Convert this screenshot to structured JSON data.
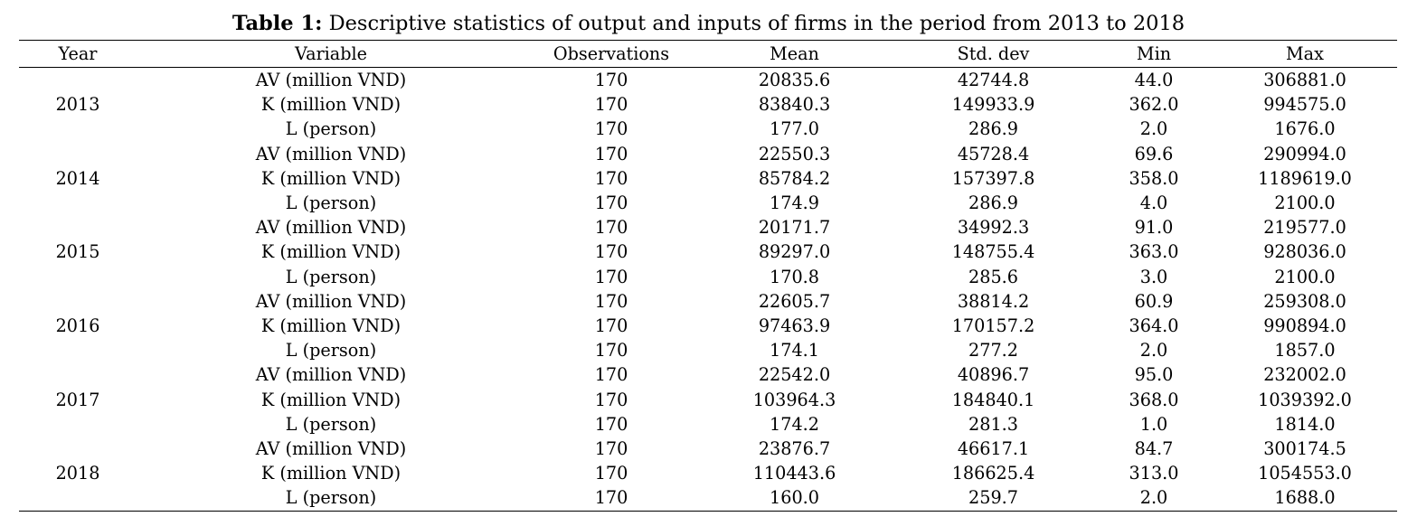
{
  "caption": {
    "label": "Table 1:",
    "text": "Descriptive statistics of output and inputs of firms in the period from 2013 to 2018"
  },
  "table": {
    "headers": [
      "Year",
      "Variable",
      "Observations",
      "Mean",
      "Std. dev",
      "Min",
      "Max"
    ],
    "groups": [
      {
        "year": "2013",
        "rows": [
          {
            "variable": "AV (million VND)",
            "observations": "170",
            "mean": "20835.6",
            "std": "42744.8",
            "min": "44.0",
            "max": "306881.0"
          },
          {
            "variable": "K (million VND)",
            "observations": "170",
            "mean": "83840.3",
            "std": "149933.9",
            "min": "362.0",
            "max": "994575.0"
          },
          {
            "variable": "L (person)",
            "observations": "170",
            "mean": "177.0",
            "std": "286.9",
            "min": "2.0",
            "max": "1676.0"
          }
        ]
      },
      {
        "year": "2014",
        "rows": [
          {
            "variable": "AV (million VND)",
            "observations": "170",
            "mean": "22550.3",
            "std": "45728.4",
            "min": "69.6",
            "max": "290994.0"
          },
          {
            "variable": "K (million VND)",
            "observations": "170",
            "mean": "85784.2",
            "std": "157397.8",
            "min": "358.0",
            "max": "1189619.0"
          },
          {
            "variable": "L (person)",
            "observations": "170",
            "mean": "174.9",
            "std": "286.9",
            "min": "4.0",
            "max": "2100.0"
          }
        ]
      },
      {
        "year": "2015",
        "rows": [
          {
            "variable": "AV (million VND)",
            "observations": "170",
            "mean": "20171.7",
            "std": "34992.3",
            "min": "91.0",
            "max": "219577.0"
          },
          {
            "variable": "K (million VND)",
            "observations": "170",
            "mean": "89297.0",
            "std": "148755.4",
            "min": "363.0",
            "max": "928036.0"
          },
          {
            "variable": "L (person)",
            "observations": "170",
            "mean": "170.8",
            "std": "285.6",
            "min": "3.0",
            "max": "2100.0"
          }
        ]
      },
      {
        "year": "2016",
        "rows": [
          {
            "variable": "AV (million VND)",
            "observations": "170",
            "mean": "22605.7",
            "std": "38814.2",
            "min": "60.9",
            "max": "259308.0"
          },
          {
            "variable": "K (million VND)",
            "observations": "170",
            "mean": "97463.9",
            "std": "170157.2",
            "min": "364.0",
            "max": "990894.0"
          },
          {
            "variable": "L (person)",
            "observations": "170",
            "mean": "174.1",
            "std": "277.2",
            "min": "2.0",
            "max": "1857.0"
          }
        ]
      },
      {
        "year": "2017",
        "rows": [
          {
            "variable": "AV (million VND)",
            "observations": "170",
            "mean": "22542.0",
            "std": "40896.7",
            "min": "95.0",
            "max": "232002.0"
          },
          {
            "variable": "K (million VND)",
            "observations": "170",
            "mean": "103964.3",
            "std": "184840.1",
            "min": "368.0",
            "max": "1039392.0"
          },
          {
            "variable": "L (person)",
            "observations": "170",
            "mean": "174.2",
            "std": "281.3",
            "min": "1.0",
            "max": "1814.0"
          }
        ]
      },
      {
        "year": "2018",
        "rows": [
          {
            "variable": "AV (million VND)",
            "observations": "170",
            "mean": "23876.7",
            "std": "46617.1",
            "min": "84.7",
            "max": "300174.5"
          },
          {
            "variable": "K (million VND)",
            "observations": "170",
            "mean": "110443.6",
            "std": "186625.4",
            "min": "313.0",
            "max": "1054553.0"
          },
          {
            "variable": "L (person)",
            "observations": "170",
            "mean": "160.0",
            "std": "259.7",
            "min": "2.0",
            "max": "1688.0"
          }
        ]
      }
    ]
  }
}
